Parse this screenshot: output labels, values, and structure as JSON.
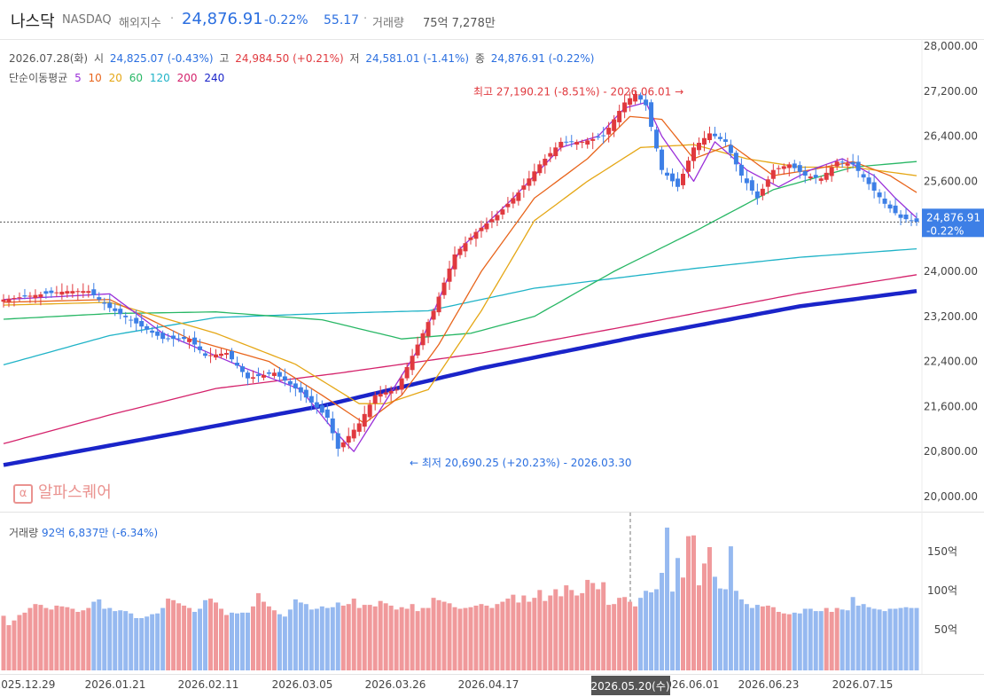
{
  "header": {
    "name": "나스닥",
    "code": "NASDAQ",
    "category": "해외지수",
    "sep": "·",
    "price": "24,876.91",
    "change_pct": "-0.22%",
    "change_abs": "55.17",
    "volume_label": "거래량",
    "volume_value": "75억 7,278만"
  },
  "ohlc": {
    "date": "2026.07.28(화)",
    "open_label": "시",
    "open_value": "24,825.07 (-0.43%)",
    "high_label": "고",
    "high_value": "24,984.50 (+0.21%)",
    "low_label": "저",
    "low_value": "24,581.01 (-1.41%)",
    "close_label": "종",
    "close_value": "24,876.91 (-0.22%)"
  },
  "ma_legend": {
    "label": "단순이동평균",
    "periods": [
      {
        "period": "5",
        "color": "#9b30d9"
      },
      {
        "period": "10",
        "color": "#e8651c"
      },
      {
        "period": "20",
        "color": "#e5a716"
      },
      {
        "period": "60",
        "color": "#28b765"
      },
      {
        "period": "120",
        "color": "#1fb3c7"
      },
      {
        "period": "200",
        "color": "#d4226b"
      },
      {
        "period": "240",
        "color": "#1a24c9"
      }
    ]
  },
  "volume_legend": {
    "label": "거래량",
    "value": "92억 6,837만",
    "change": "(-6.34%)"
  },
  "watermark": {
    "icon": "α",
    "text": "알파스퀘어"
  },
  "colors": {
    "up": "#e0393e",
    "down": "#3d7fe6",
    "up_vol": "#f0999b",
    "down_vol": "#96b9f0",
    "accent": "#2b6fe0"
  },
  "chart_data": {
    "type": "candlestick",
    "y_axis": {
      "min": 20000,
      "max": 28000,
      "ticks": [
        "28,000.00",
        "27,200.00",
        "26,400.00",
        "25,600.00",
        "24,800.00",
        "24,000.00",
        "23,200.00",
        "22,400.00",
        "21,600.00",
        "20,800.00",
        "20,000.00"
      ]
    },
    "x_axis": {
      "ticks": [
        "2025.12.29",
        "2026.01.21",
        "2026.02.11",
        "2026.03.05",
        "2026.03.26",
        "2026.04.17",
        "2026.05.20(수)",
        "2026.06.01",
        "2026.06.23",
        "2026.07.15"
      ],
      "hover_label": "2026.05.20(수)"
    },
    "current_price_label": {
      "price": "24,876.91",
      "change": "-0.22%",
      "value": 24876.91
    },
    "annotations": {
      "high": {
        "text": "최고 27,190.21 (-8.51%) - 2026.06.01",
        "value": 27190.21,
        "arrow": "→"
      },
      "low": {
        "text": "최저 20,690.25 (+20.23%) - 2026.03.30",
        "value": 20690.25,
        "arrow": "←"
      }
    },
    "volume_axis": {
      "ticks": [
        "150억",
        "100억",
        "50억"
      ],
      "max_value": 200
    },
    "anchors": [
      [
        0,
        23500
      ],
      [
        6,
        23580
      ],
      [
        12,
        23650
      ],
      [
        16,
        23650
      ],
      [
        20,
        23350
      ],
      [
        26,
        23020
      ],
      [
        30,
        22800
      ],
      [
        35,
        22800
      ],
      [
        38,
        22500
      ],
      [
        42,
        22550
      ],
      [
        46,
        22100
      ],
      [
        51,
        22200
      ],
      [
        56,
        21850
      ],
      [
        61,
        21400
      ],
      [
        63,
        20850
      ],
      [
        67,
        21300
      ],
      [
        70,
        21800
      ],
      [
        74,
        21900
      ],
      [
        77,
        22500
      ],
      [
        81,
        23300
      ],
      [
        85,
        24300
      ],
      [
        89,
        24700
      ],
      [
        93,
        25000
      ],
      [
        97,
        25400
      ],
      [
        101,
        25900
      ],
      [
        105,
        26300
      ],
      [
        109,
        26300
      ],
      [
        113,
        26400
      ],
      [
        117,
        27000
      ],
      [
        119,
        27150
      ],
      [
        121,
        26950
      ],
      [
        124,
        25800
      ],
      [
        127,
        25500
      ],
      [
        130,
        26200
      ],
      [
        133,
        26450
      ],
      [
        136,
        26300
      ],
      [
        139,
        25700
      ],
      [
        142,
        25300
      ],
      [
        145,
        25800
      ],
      [
        148,
        25900
      ],
      [
        151,
        25700
      ],
      [
        154,
        25650
      ],
      [
        157,
        25950
      ],
      [
        160,
        25900
      ],
      [
        163,
        25550
      ],
      [
        166,
        25200
      ],
      [
        169,
        24950
      ],
      [
        172,
        24880
      ]
    ],
    "mas": [
      {
        "period": 240,
        "values": [
          [
            0,
            20560
          ],
          [
            30,
            21080
          ],
          [
            60,
            21610
          ],
          [
            90,
            22280
          ],
          [
            120,
            22850
          ],
          [
            150,
            23380
          ],
          [
            172,
            23650
          ]
        ]
      },
      {
        "period": 200,
        "values": [
          [
            0,
            20940
          ],
          [
            20,
            21450
          ],
          [
            40,
            21920
          ],
          [
            63,
            22190
          ],
          [
            90,
            22550
          ],
          [
            120,
            23070
          ],
          [
            150,
            23610
          ],
          [
            172,
            23940
          ]
        ]
      },
      {
        "period": 120,
        "values": [
          [
            0,
            22340
          ],
          [
            20,
            22860
          ],
          [
            40,
            23180
          ],
          [
            60,
            23250
          ],
          [
            80,
            23300
          ],
          [
            100,
            23700
          ],
          [
            130,
            24050
          ],
          [
            150,
            24250
          ],
          [
            172,
            24400
          ]
        ]
      },
      {
        "period": 60,
        "values": [
          [
            0,
            23150
          ],
          [
            20,
            23250
          ],
          [
            40,
            23280
          ],
          [
            60,
            23140
          ],
          [
            75,
            22800
          ],
          [
            88,
            22900
          ],
          [
            100,
            23200
          ],
          [
            115,
            24000
          ],
          [
            130,
            24700
          ],
          [
            145,
            25450
          ],
          [
            160,
            25850
          ],
          [
            172,
            25950
          ]
        ]
      },
      {
        "period": 20,
        "values": [
          [
            0,
            23400
          ],
          [
            20,
            23450
          ],
          [
            40,
            22900
          ],
          [
            55,
            22350
          ],
          [
            67,
            21650
          ],
          [
            72,
            21650
          ],
          [
            80,
            21900
          ],
          [
            90,
            23300
          ],
          [
            100,
            24900
          ],
          [
            110,
            25600
          ],
          [
            120,
            26200
          ],
          [
            130,
            26250
          ],
          [
            140,
            26000
          ],
          [
            150,
            25850
          ],
          [
            160,
            25850
          ],
          [
            172,
            25700
          ]
        ]
      },
      {
        "period": 10,
        "values": [
          [
            0,
            23450
          ],
          [
            20,
            23500
          ],
          [
            35,
            22800
          ],
          [
            50,
            22400
          ],
          [
            60,
            21800
          ],
          [
            68,
            21300
          ],
          [
            75,
            21800
          ],
          [
            82,
            22700
          ],
          [
            90,
            24000
          ],
          [
            100,
            25300
          ],
          [
            110,
            26000
          ],
          [
            118,
            26750
          ],
          [
            124,
            26700
          ],
          [
            130,
            26000
          ],
          [
            137,
            26250
          ],
          [
            145,
            25700
          ],
          [
            152,
            25800
          ],
          [
            160,
            25950
          ],
          [
            167,
            25700
          ],
          [
            172,
            25400
          ]
        ]
      },
      {
        "period": 5,
        "values": [
          [
            0,
            23500
          ],
          [
            20,
            23600
          ],
          [
            30,
            22900
          ],
          [
            45,
            22300
          ],
          [
            56,
            21900
          ],
          [
            62,
            21200
          ],
          [
            66,
            20800
          ],
          [
            70,
            21400
          ],
          [
            78,
            22600
          ],
          [
            86,
            24400
          ],
          [
            96,
            25300
          ],
          [
            105,
            26200
          ],
          [
            112,
            26400
          ],
          [
            117,
            26900
          ],
          [
            121,
            27000
          ],
          [
            124,
            26400
          ],
          [
            130,
            25600
          ],
          [
            134,
            26300
          ],
          [
            140,
            25800
          ],
          [
            146,
            25500
          ],
          [
            152,
            25800
          ],
          [
            158,
            26000
          ],
          [
            164,
            25700
          ],
          [
            168,
            25300
          ],
          [
            172,
            24950
          ]
        ]
      }
    ],
    "volume_values": [
      70,
      58,
      64,
      71,
      74,
      80,
      85,
      84,
      80,
      78,
      83,
      82,
      81,
      79,
      75,
      77,
      80,
      88,
      91,
      79,
      80,
      76,
      77,
      76,
      73,
      67,
      67,
      69,
      72,
      73,
      80,
      92,
      90,
      86,
      83,
      80,
      75,
      79,
      90,
      92,
      87,
      79,
      71,
      74,
      73,
      74,
      74,
      82,
      99,
      88,
      82,
      77,
      72,
      69,
      78,
      91,
      87,
      85,
      78,
      79,
      82,
      80,
      81,
      87,
      83,
      85,
      92,
      80,
      84,
      84,
      82,
      89,
      86,
      83,
      78,
      81,
      79,
      85,
      76,
      80,
      80,
      93,
      90,
      88,
      86,
      81,
      79,
      80,
      81,
      83,
      85,
      83,
      80,
      85,
      88,
      92,
      97,
      87,
      96,
      88,
      93,
      103,
      89,
      96,
      104,
      95,
      109,
      103,
      96,
      99,
      116,
      112,
      104,
      113,
      84,
      85,
      93,
      94,
      88,
      82,
      93,
      102,
      100,
      104,
      125,
      183,
      101,
      144,
      119,
      172,
      173,
      109,
      137,
      158,
      120,
      105,
      104,
      159,
      102,
      91,
      85,
      80,
      84,
      82,
      83,
      81,
      75,
      73,
      72,
      74,
      73,
      79,
      79,
      76,
      76,
      80,
      75,
      80,
      78,
      77,
      94,
      83,
      85,
      81,
      79,
      78,
      76,
      79,
      79,
      80,
      81,
      80,
      80
    ]
  }
}
